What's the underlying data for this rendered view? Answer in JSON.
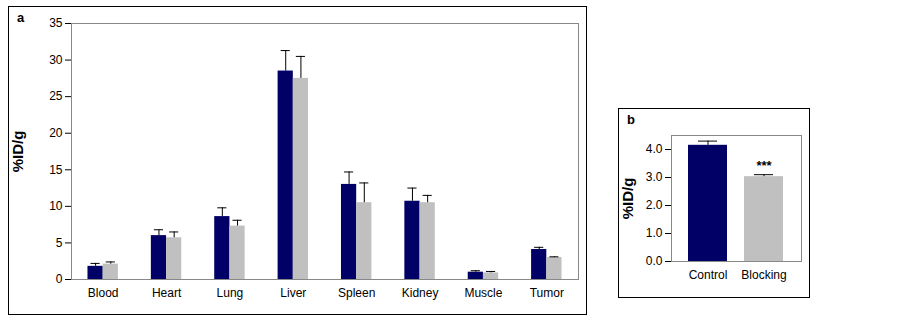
{
  "chart_data": [
    {
      "type": "bar",
      "title": "a",
      "y_label": "%ID/g",
      "categories": [
        "Blood",
        "Heart",
        "Lung",
        "Liver",
        "Spleen",
        "Kidney",
        "Muscle",
        "Tumor"
      ],
      "series": [
        {
          "color": "#000066",
          "values": [
            1.8,
            6.0,
            8.6,
            28.5,
            13.0,
            10.7,
            1.0,
            4.1
          ],
          "errors": [
            0.4,
            0.8,
            1.2,
            2.8,
            1.7,
            1.8,
            0.2,
            0.3
          ]
        },
        {
          "color": "#c0c0c0",
          "values": [
            2.1,
            5.7,
            7.3,
            27.5,
            10.5,
            10.5,
            0.9,
            3.0
          ],
          "errors": [
            0.3,
            0.8,
            0.8,
            3.0,
            2.7,
            1.0,
            0.2,
            0.1
          ]
        }
      ],
      "ylim": [
        0,
        35
      ],
      "yticks": [
        0,
        5,
        10,
        15,
        20,
        25,
        30,
        35
      ],
      "grid": false
    },
    {
      "type": "bar",
      "title": "b",
      "y_label": "%ID/g",
      "categories": [
        "Control",
        "Blocking"
      ],
      "values": [
        4.15,
        3.03
      ],
      "errors": [
        0.15,
        0.07
      ],
      "colors": [
        "#000066",
        "#c0c0c0"
      ],
      "annotations": [
        {
          "category": "Blocking",
          "text": "***"
        }
      ],
      "ylim": [
        0,
        4.5
      ],
      "yticks": [
        0,
        1,
        2,
        3,
        4
      ],
      "grid": false
    }
  ]
}
